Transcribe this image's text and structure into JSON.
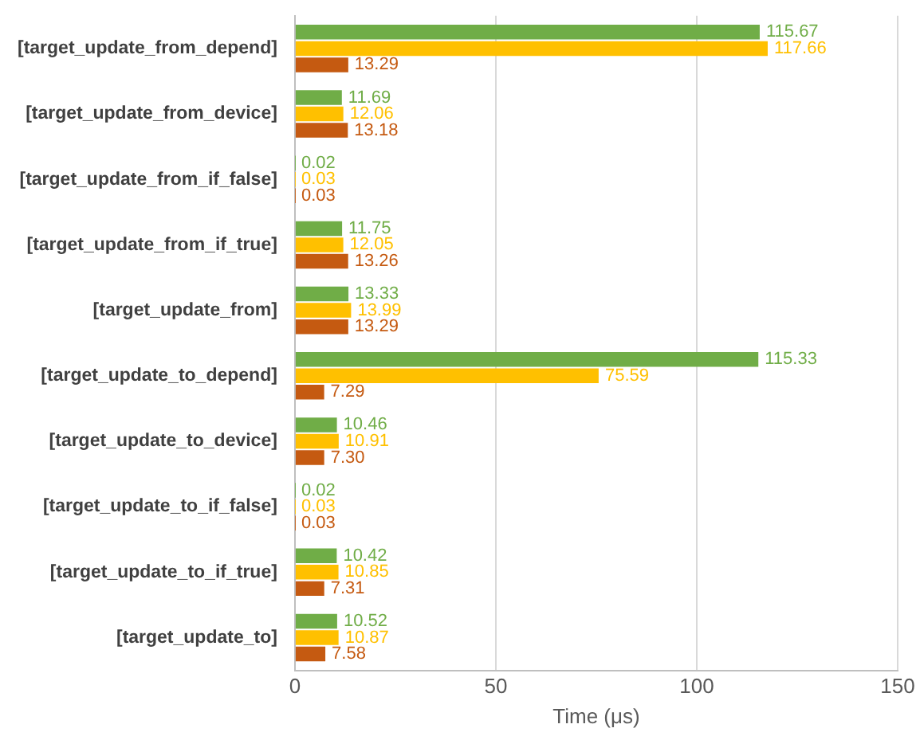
{
  "chart_data": {
    "type": "bar",
    "orientation": "horizontal",
    "xlabel": "Time (μs)",
    "categories": [
      "[target_update_from_depend]",
      "[target_update_from_device]",
      "[target_update_from_if_false]",
      "[target_update_from_if_true]",
      "[target_update_from]",
      "[target_update_to_depend]",
      "[target_update_to_device]",
      "[target_update_to_if_false]",
      "[target_update_to_if_true]",
      "[target_update_to]"
    ],
    "series": [
      {
        "color": "#70ad47",
        "values": [
          115.67,
          11.69,
          0.02,
          11.75,
          13.33,
          115.33,
          10.46,
          0.02,
          10.42,
          10.52
        ],
        "value_labels": [
          "115.67",
          "11.69",
          "0.02",
          "11.75",
          "13.33",
          "115.33",
          "10.46",
          "0.02",
          "10.42",
          "10.52"
        ]
      },
      {
        "color": "#ffc000",
        "values": [
          117.66,
          12.06,
          0.03,
          12.05,
          13.99,
          75.59,
          10.91,
          0.03,
          10.85,
          10.87
        ],
        "value_labels": [
          "117.66",
          "12.06",
          "0.03",
          "12.05",
          "13.99",
          "75.59",
          "10.91",
          "0.03",
          "10.85",
          "10.87"
        ]
      },
      {
        "color": "#c55a11",
        "values": [
          13.29,
          13.18,
          0.03,
          13.26,
          13.29,
          7.29,
          7.3,
          0.03,
          7.31,
          7.58
        ],
        "value_labels": [
          "13.29",
          "13.18",
          "0.03",
          "13.26",
          "13.29",
          "7.29",
          "7.30",
          "0.03",
          "7.31",
          "7.58"
        ]
      }
    ],
    "xlim": [
      0,
      150
    ],
    "xticks": [
      0,
      50,
      100,
      150
    ],
    "grid": "x",
    "legend": false
  }
}
